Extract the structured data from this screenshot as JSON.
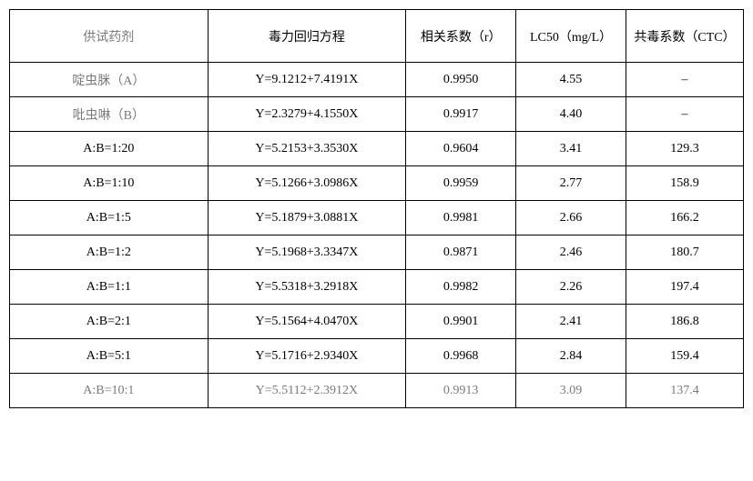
{
  "table": {
    "header": {
      "col1": "供试药剂",
      "col2": "毒力回归方程",
      "col3": "相关系数（r）",
      "col4": "LC50（mg/L）",
      "col5": "共毒系数（CTC）"
    },
    "rows": [
      {
        "c1": "啶虫脒（A）",
        "c2": "Y=9.1212+7.4191X",
        "c3": "0.9950",
        "c4": "4.55",
        "c5": "–"
      },
      {
        "c1": "吡虫啉（B）",
        "c2": "Y=2.3279+4.1550X",
        "c3": "0.9917",
        "c4": "4.40",
        "c5": "–"
      },
      {
        "c1": "A:B=1:20",
        "c2": "Y=5.2153+3.3530X",
        "c3": "0.9604",
        "c4": "3.41",
        "c5": "129.3"
      },
      {
        "c1": "A:B=1:10",
        "c2": "Y=5.1266+3.0986X",
        "c3": "0.9959",
        "c4": "2.77",
        "c5": "158.9"
      },
      {
        "c1": "A:B=1:5",
        "c2": "Y=5.1879+3.0881X",
        "c3": "0.9981",
        "c4": "2.66",
        "c5": "166.2"
      },
      {
        "c1": "A:B=1:2",
        "c2": "Y=5.1968+3.3347X",
        "c3": "0.9871",
        "c4": "2.46",
        "c5": "180.7"
      },
      {
        "c1": "A:B=1:1",
        "c2": "Y=5.5318+3.2918X",
        "c3": "0.9982",
        "c4": "2.26",
        "c5": "197.4"
      },
      {
        "c1": "A:B=2:1",
        "c2": "Y=5.1564+4.0470X",
        "c3": "0.9901",
        "c4": "2.41",
        "c5": "186.8"
      },
      {
        "c1": "A:B=5:1",
        "c2": "Y=5.1716+2.9340X",
        "c3": "0.9968",
        "c4": "2.84",
        "c5": "159.4"
      },
      {
        "c1": "A:B=10:1",
        "c2": "Y=5.5112+2.3912X",
        "c3": "0.9913",
        "c4": "3.09",
        "c5": "137.4"
      }
    ]
  }
}
